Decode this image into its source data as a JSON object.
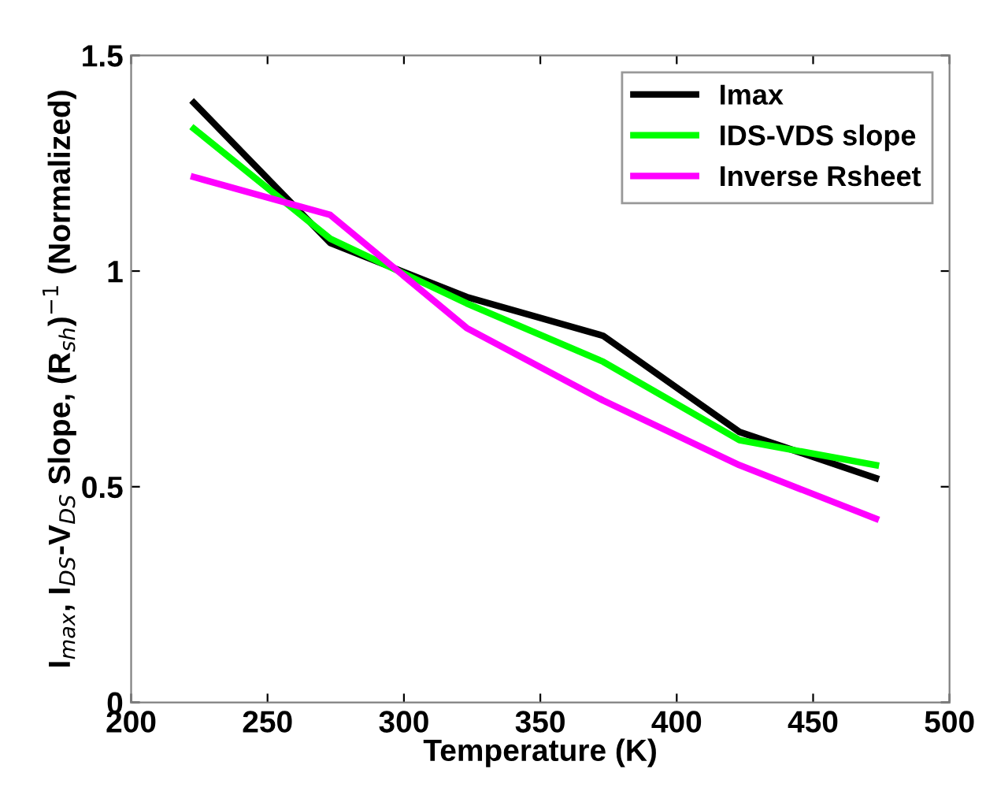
{
  "chart_data": {
    "type": "line",
    "xlabel": "Temperature (K)",
    "ylabel": "I$_{max}$, I$_{DS}$-V$_{DS}$ Slope, (R$_{sh}$)$^{−1}$ (Normalized)",
    "x": [
      223,
      273,
      323,
      373,
      423,
      473
    ],
    "series": [
      {
        "name": "Imax",
        "color": "#000000",
        "values": [
          1.39,
          1.065,
          0.94,
          0.85,
          0.627,
          0.52
        ]
      },
      {
        "name": "IDS-VDS slope",
        "color": "#00ff00",
        "values": [
          1.33,
          1.075,
          0.925,
          0.79,
          0.608,
          0.55
        ]
      },
      {
        "name": "Inverse Rsheet",
        "color": "#ff00ff",
        "values": [
          1.218,
          1.13,
          0.868,
          0.7,
          0.55,
          0.426
        ]
      }
    ],
    "xlim": [
      200,
      500
    ],
    "xticks": [
      200,
      250,
      300,
      350,
      400,
      450,
      500
    ],
    "ylim": [
      0,
      1.5
    ],
    "yticks": [
      0,
      0.5,
      1,
      1.5
    ],
    "grid": false,
    "legend": "top right",
    "marker": "none",
    "line_style": "solid"
  }
}
